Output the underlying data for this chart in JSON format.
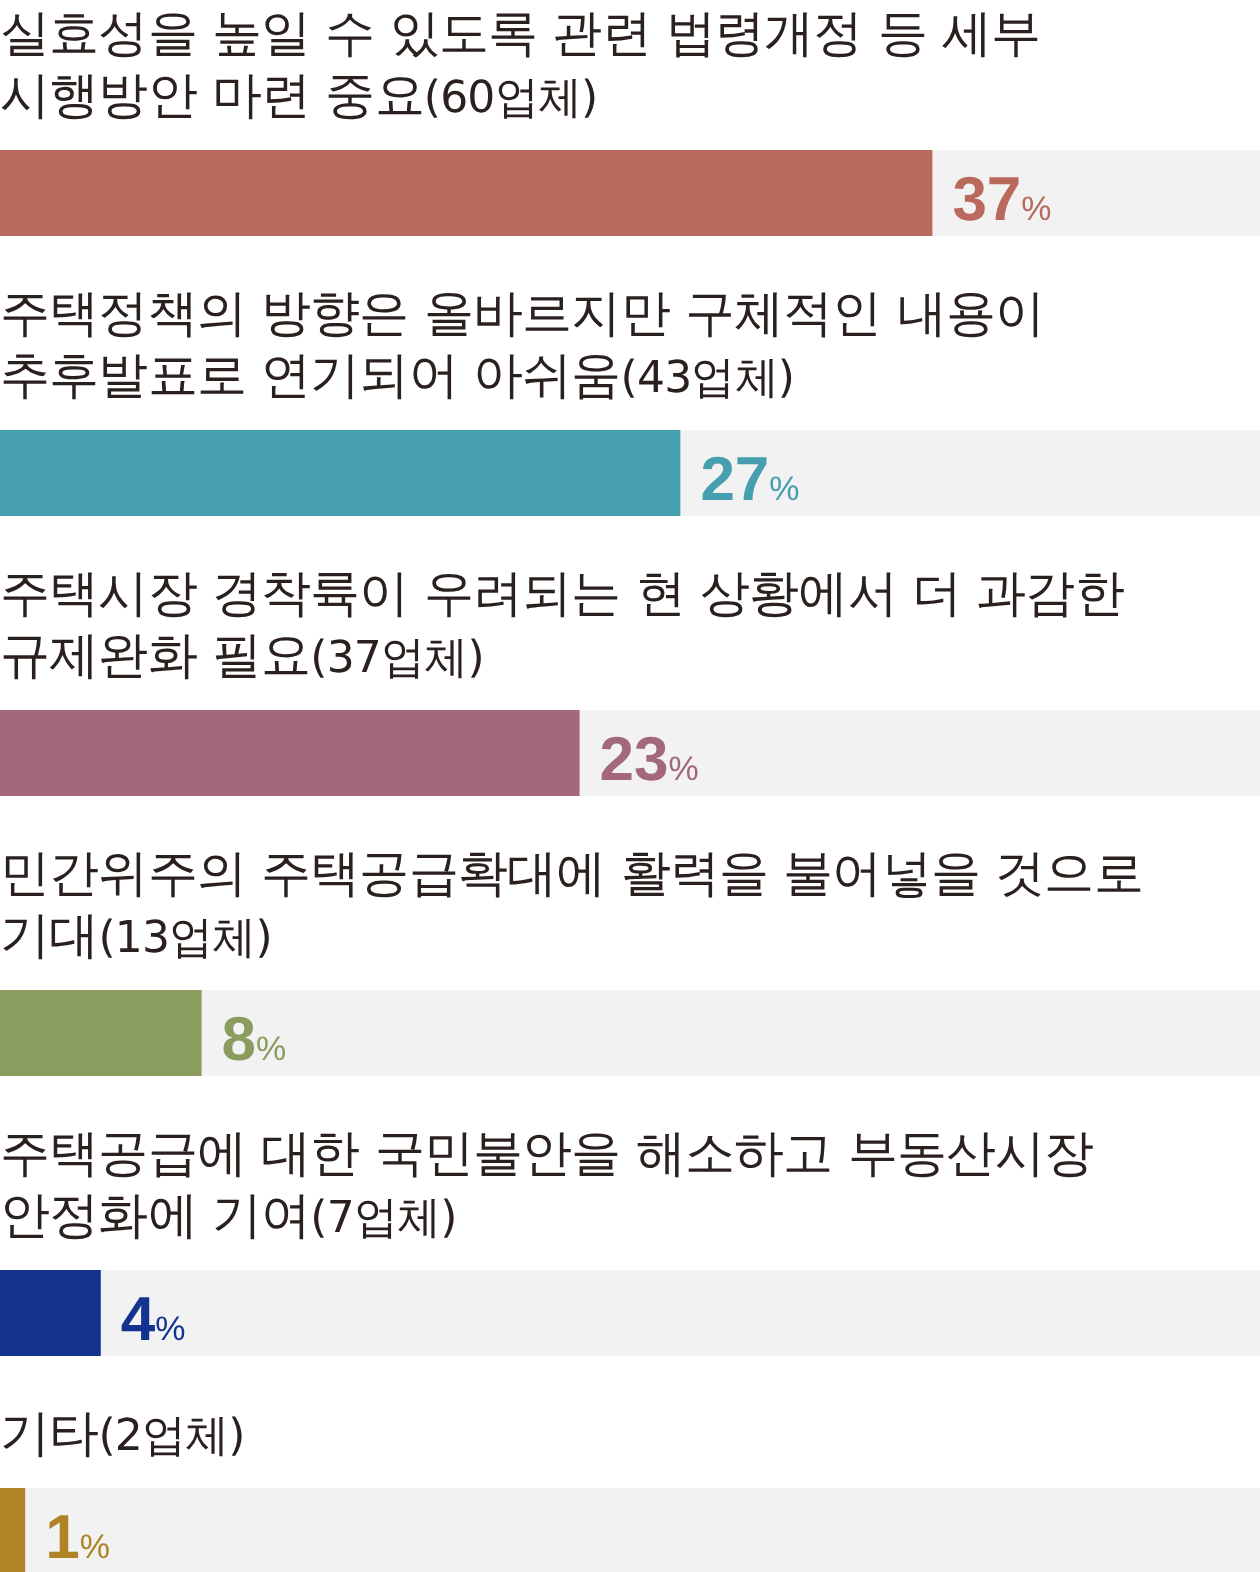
{
  "chart_data": {
    "type": "bar",
    "orientation": "horizontal",
    "categories": [
      "실효성을 높일 수 있도록 관련 법령개정 등 세부 시행방안 마련 중요(60업체)",
      "주택정책의 방향은 올바르지만 구체적인 내용이 추후발표로 연기되어 아쉬움(43업체)",
      "주택시장 경착륙이 우려되는 현 상황에서 더 과감한 규제완화 필요(37업체)",
      "민간위주의 주택공급확대에 활력을 불어넣을 것으로 기대(13업체)",
      "주택공급에 대한 국민불안을 해소하고 부동산시장 안정화에 기여(7업체)",
      "기타(2업체)"
    ],
    "values": [
      37,
      27,
      23,
      8,
      4,
      1
    ],
    "colors": [
      "#b96a5c",
      "#469fae",
      "#a3677e",
      "#8a9c5e",
      "#13338e",
      "#b08327"
    ],
    "value_labels": [
      "37%",
      "27%",
      "23%",
      "8%",
      "4%",
      "1%"
    ],
    "xlim": [
      0,
      50
    ],
    "tick_labels": "y"
  }
}
